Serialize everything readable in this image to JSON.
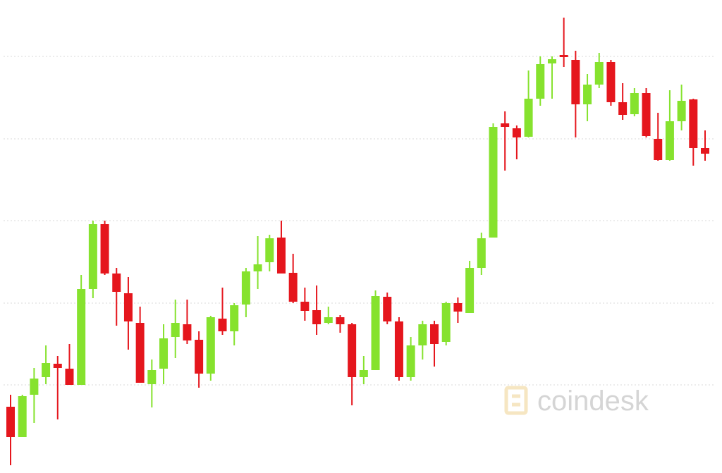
{
  "chart_data": {
    "type": "candlestick",
    "watermark": "coindesk",
    "up_color": "#86e22e",
    "down_color": "#e5161d",
    "grid": true,
    "ylim": [
      0,
      671
    ],
    "yticks": [
      125,
      241,
      358,
      474,
      591
    ],
    "open": [
      94,
      51,
      111,
      136,
      155,
      148,
      125,
      261,
      353,
      283,
      255,
      213,
      126,
      148,
      193,
      211,
      189,
      141,
      219,
      201,
      239,
      286,
      299,
      334,
      284,
      243,
      231,
      213,
      221,
      211,
      136,
      146,
      250,
      215,
      136,
      181,
      211,
      186,
      241,
      227,
      291,
      334,
      496,
      489,
      477,
      531,
      581,
      593,
      586,
      523,
      551,
      583,
      526,
      509,
      539,
      474,
      444,
      499,
      530,
      461
    ],
    "high": [
      111,
      111,
      149,
      181,
      166,
      183,
      281,
      358,
      358,
      291,
      278,
      236,
      161,
      211,
      246,
      246,
      201,
      223,
      263,
      241,
      291,
      336,
      338,
      358,
      311,
      263,
      266,
      236,
      224,
      213,
      166,
      259,
      256,
      221,
      193,
      216,
      216,
      243,
      249,
      301,
      341,
      496,
      513,
      493,
      571,
      591,
      591,
      646,
      599,
      566,
      596,
      586,
      553,
      546,
      546,
      511,
      543,
      551,
      531,
      486
    ],
    "low": [
      11,
      51,
      71,
      126,
      76,
      125,
      125,
      248,
      281,
      209,
      175,
      128,
      93,
      126,
      163,
      183,
      121,
      131,
      196,
      181,
      221,
      261,
      286,
      283,
      241,
      216,
      196,
      211,
      199,
      96,
      126,
      146,
      211,
      131,
      131,
      161,
      151,
      181,
      213,
      227,
      281,
      334,
      429,
      445,
      476,
      521,
      531,
      576,
      476,
      499,
      546,
      521,
      501,
      506,
      476,
      443,
      443,
      486,
      436,
      443
    ],
    "close": [
      51,
      109,
      134,
      156,
      149,
      125,
      261,
      353,
      283,
      257,
      215,
      128,
      146,
      191,
      213,
      188,
      141,
      221,
      201,
      238,
      286,
      296,
      333,
      283,
      243,
      230,
      211,
      221,
      211,
      136,
      146,
      251,
      215,
      136,
      181,
      211,
      183,
      241,
      229,
      291,
      333,
      491,
      491,
      476,
      531,
      580,
      587,
      591,
      523,
      551,
      583,
      526,
      508,
      539,
      478,
      444,
      499,
      528,
      461,
      453
    ]
  }
}
